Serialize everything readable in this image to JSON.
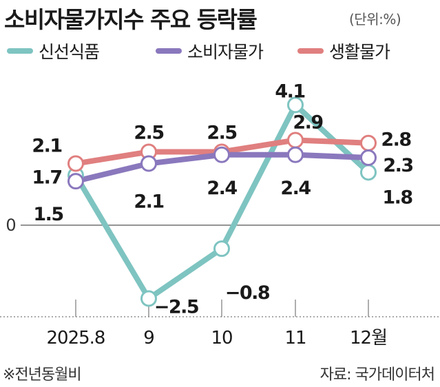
{
  "header": {
    "title": "소비자물가지수 주요 등락률",
    "unit": "(단위:%)"
  },
  "footer": {
    "note": "※전년동월비",
    "source": "자료: 국가데이터처"
  },
  "chart_data": {
    "type": "line",
    "title": "소비자물가지수 주요 등락률",
    "xlabel": "",
    "ylabel": "",
    "categories": [
      "2025.8",
      "9",
      "10",
      "11",
      "12월"
    ],
    "ylim": [
      -3.0,
      4.5
    ],
    "yticks": [
      "0"
    ],
    "legend_position": "top",
    "series": [
      {
        "name": "신선식품",
        "color": "#7ec4c1",
        "values": [
          1.7,
          -2.5,
          -0.8,
          4.1,
          1.8
        ],
        "labels": [
          "1.7",
          "−2.5",
          "−0.8",
          "4.1",
          "1.8"
        ]
      },
      {
        "name": "소비자물가",
        "color": "#8a78bd",
        "values": [
          1.5,
          2.1,
          2.4,
          2.4,
          2.3
        ],
        "labels": [
          "1.5",
          "2.1",
          "2.4",
          "2.4",
          "2.3"
        ]
      },
      {
        "name": "생활물가",
        "color": "#e07f7f",
        "values": [
          2.1,
          2.5,
          2.5,
          2.9,
          2.8
        ],
        "labels": [
          "2.1",
          "2.5",
          "2.5",
          "2.9",
          "2.8"
        ]
      }
    ]
  }
}
